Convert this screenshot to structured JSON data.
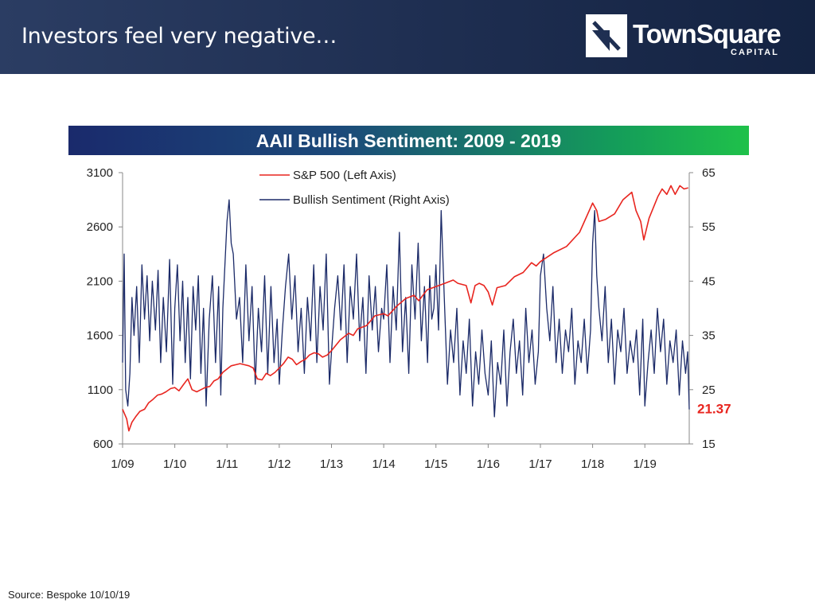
{
  "header": {
    "title": "Investors feel very negative…",
    "logo_name": "TownSquare",
    "logo_sub": "CAPITAL",
    "colors": {
      "header_bg": "#1f2f52",
      "logo_fg": "#ffffff"
    }
  },
  "source_note": "Source: Bespoke 10/10/19",
  "chart_data": {
    "type": "line",
    "title": "AAII Bullish Sentiment: 2009 - 2019",
    "x_ticks": [
      "1/09",
      "1/10",
      "1/11",
      "1/12",
      "1/13",
      "1/14",
      "1/15",
      "1/16",
      "1/17",
      "1/18",
      "1/19"
    ],
    "x_range": [
      2009.0,
      2019.85
    ],
    "left_axis": {
      "ticks": [
        "3100",
        "2600",
        "2100",
        "1600",
        "1100",
        "600"
      ],
      "range": [
        600,
        3100
      ]
    },
    "right_axis": {
      "ticks": [
        "65",
        "55",
        "45",
        "35",
        "25",
        "15"
      ],
      "range": [
        15,
        65
      ]
    },
    "last_value_label": "21.37",
    "legend": {
      "position": "top-left",
      "entries": [
        {
          "name": "S&P 500 (Left Axis)",
          "color": "#e8251f"
        },
        {
          "name": "Bullish Sentiment (Right Axis)",
          "color": "#1b2a68"
        }
      ]
    },
    "series": [
      {
        "name": "S&P 500 (Left Axis)",
        "axis": "left",
        "color": "#e8251f",
        "x": [
          2009.0,
          2009.08,
          2009.12,
          2009.18,
          2009.25,
          2009.33,
          2009.42,
          2009.5,
          2009.58,
          2009.67,
          2009.75,
          2009.83,
          2009.92,
          2010.0,
          2010.08,
          2010.17,
          2010.25,
          2010.33,
          2010.42,
          2010.5,
          2010.58,
          2010.67,
          2010.75,
          2010.83,
          2010.92,
          2011.0,
          2011.08,
          2011.17,
          2011.25,
          2011.33,
          2011.42,
          2011.5,
          2011.58,
          2011.67,
          2011.75,
          2011.83,
          2011.92,
          2012.0,
          2012.08,
          2012.17,
          2012.25,
          2012.33,
          2012.42,
          2012.5,
          2012.58,
          2012.67,
          2012.75,
          2012.83,
          2012.92,
          2013.0,
          2013.17,
          2013.33,
          2013.42,
          2013.5,
          2013.67,
          2013.83,
          2014.0,
          2014.08,
          2014.25,
          2014.42,
          2014.58,
          2014.67,
          2014.83,
          2015.0,
          2015.17,
          2015.33,
          2015.42,
          2015.58,
          2015.67,
          2015.75,
          2015.83,
          2015.92,
          2016.0,
          2016.08,
          2016.17,
          2016.33,
          2016.5,
          2016.67,
          2016.83,
          2016.92,
          2017.0,
          2017.25,
          2017.5,
          2017.75,
          2018.0,
          2018.08,
          2018.12,
          2018.25,
          2018.42,
          2018.58,
          2018.75,
          2018.83,
          2018.92,
          2018.98,
          2019.08,
          2019.25,
          2019.33,
          2019.42,
          2019.5,
          2019.58,
          2019.67,
          2019.75,
          2019.83
        ],
        "values": [
          920,
          830,
          720,
          800,
          850,
          900,
          920,
          980,
          1010,
          1050,
          1060,
          1080,
          1110,
          1120,
          1090,
          1150,
          1200,
          1100,
          1080,
          1100,
          1120,
          1130,
          1180,
          1200,
          1260,
          1290,
          1320,
          1330,
          1340,
          1330,
          1320,
          1300,
          1200,
          1190,
          1250,
          1230,
          1260,
          1300,
          1340,
          1400,
          1380,
          1330,
          1360,
          1380,
          1420,
          1440,
          1430,
          1400,
          1420,
          1460,
          1560,
          1620,
          1600,
          1660,
          1690,
          1780,
          1800,
          1780,
          1870,
          1940,
          1970,
          1920,
          2020,
          2050,
          2080,
          2110,
          2080,
          2060,
          1900,
          2060,
          2080,
          2060,
          2000,
          1880,
          2040,
          2060,
          2140,
          2180,
          2270,
          2240,
          2280,
          2360,
          2420,
          2550,
          2820,
          2750,
          2650,
          2670,
          2720,
          2850,
          2920,
          2750,
          2650,
          2480,
          2680,
          2880,
          2950,
          2900,
          2980,
          2900,
          2980,
          2950,
          2960
        ]
      },
      {
        "name": "Bullish Sentiment (Right Axis)",
        "axis": "right",
        "color": "#1b2a68",
        "x": [
          2009.0,
          2009.03,
          2009.06,
          2009.1,
          2009.14,
          2009.18,
          2009.22,
          2009.27,
          2009.32,
          2009.37,
          2009.42,
          2009.47,
          2009.52,
          2009.57,
          2009.63,
          2009.68,
          2009.73,
          2009.78,
          2009.84,
          2009.9,
          2009.96,
          2010.0,
          2010.05,
          2010.1,
          2010.15,
          2010.2,
          2010.25,
          2010.3,
          2010.35,
          2010.4,
          2010.45,
          2010.5,
          2010.55,
          2010.6,
          2010.66,
          2010.72,
          2010.78,
          2010.84,
          2010.88,
          2010.92,
          2010.96,
          2011.0,
          2011.04,
          2011.08,
          2011.12,
          2011.18,
          2011.24,
          2011.3,
          2011.36,
          2011.42,
          2011.48,
          2011.54,
          2011.6,
          2011.66,
          2011.72,
          2011.78,
          2011.84,
          2011.9,
          2011.96,
          2012.0,
          2012.06,
          2012.12,
          2012.18,
          2012.24,
          2012.3,
          2012.36,
          2012.42,
          2012.48,
          2012.54,
          2012.6,
          2012.66,
          2012.72,
          2012.78,
          2012.84,
          2012.9,
          2012.96,
          2013.0,
          2013.06,
          2013.12,
          2013.18,
          2013.24,
          2013.3,
          2013.36,
          2013.42,
          2013.48,
          2013.54,
          2013.6,
          2013.66,
          2013.72,
          2013.78,
          2013.84,
          2013.9,
          2013.96,
          2014.0,
          2014.06,
          2014.12,
          2014.18,
          2014.24,
          2014.3,
          2014.36,
          2014.42,
          2014.48,
          2014.54,
          2014.6,
          2014.66,
          2014.72,
          2014.78,
          2014.84,
          2014.88,
          2014.92,
          2014.96,
          2015.0,
          2015.05,
          2015.1,
          2015.16,
          2015.22,
          2015.28,
          2015.34,
          2015.4,
          2015.46,
          2015.52,
          2015.58,
          2015.64,
          2015.7,
          2015.76,
          2015.82,
          2015.88,
          2015.94,
          2016.0,
          2016.06,
          2016.12,
          2016.18,
          2016.24,
          2016.3,
          2016.36,
          2016.42,
          2016.48,
          2016.54,
          2016.6,
          2016.66,
          2016.72,
          2016.78,
          2016.84,
          2016.9,
          2016.96,
          2017.0,
          2017.06,
          2017.12,
          2017.18,
          2017.24,
          2017.3,
          2017.36,
          2017.42,
          2017.48,
          2017.54,
          2017.6,
          2017.66,
          2017.72,
          2017.78,
          2017.84,
          2017.9,
          2017.96,
          2018.0,
          2018.04,
          2018.08,
          2018.12,
          2018.18,
          2018.24,
          2018.3,
          2018.36,
          2018.42,
          2018.48,
          2018.54,
          2018.6,
          2018.66,
          2018.72,
          2018.78,
          2018.84,
          2018.9,
          2018.96,
          2019.0,
          2019.06,
          2019.12,
          2019.18,
          2019.24,
          2019.3,
          2019.36,
          2019.42,
          2019.48,
          2019.54,
          2019.6,
          2019.66,
          2019.72,
          2019.78,
          2019.82,
          2019.85
        ],
        "values": [
          30,
          50,
          25,
          22,
          28,
          42,
          35,
          44,
          30,
          48,
          38,
          46,
          34,
          45,
          36,
          47,
          30,
          42,
          32,
          49,
          26,
          40,
          48,
          34,
          45,
          30,
          42,
          27,
          44,
          36,
          46,
          28,
          40,
          22,
          38,
          46,
          30,
          44,
          24,
          40,
          48,
          56,
          60,
          52,
          50,
          38,
          42,
          30,
          48,
          34,
          44,
          26,
          40,
          32,
          46,
          28,
          44,
          30,
          38,
          26,
          36,
          44,
          50,
          38,
          46,
          32,
          40,
          28,
          42,
          34,
          48,
          30,
          44,
          36,
          50,
          26,
          32,
          40,
          46,
          36,
          48,
          30,
          44,
          38,
          50,
          34,
          42,
          28,
          46,
          36,
          44,
          32,
          40,
          38,
          48,
          30,
          44,
          36,
          54,
          32,
          42,
          28,
          48,
          38,
          52,
          34,
          44,
          30,
          46,
          38,
          40,
          48,
          36,
          58,
          42,
          26,
          36,
          30,
          40,
          24,
          34,
          28,
          38,
          22,
          32,
          26,
          36,
          28,
          24,
          34,
          20,
          30,
          26,
          36,
          22,
          32,
          38,
          28,
          34,
          24,
          40,
          30,
          36,
          26,
          32,
          46,
          50,
          40,
          34,
          44,
          30,
          38,
          28,
          36,
          32,
          40,
          26,
          34,
          30,
          38,
          28,
          36,
          52,
          58,
          46,
          40,
          34,
          44,
          30,
          38,
          26,
          36,
          32,
          40,
          28,
          34,
          30,
          36,
          24,
          38,
          22,
          30,
          36,
          28,
          40,
          32,
          38,
          26,
          34,
          30,
          36,
          24,
          34,
          28,
          32,
          21.37
        ]
      }
    ]
  }
}
